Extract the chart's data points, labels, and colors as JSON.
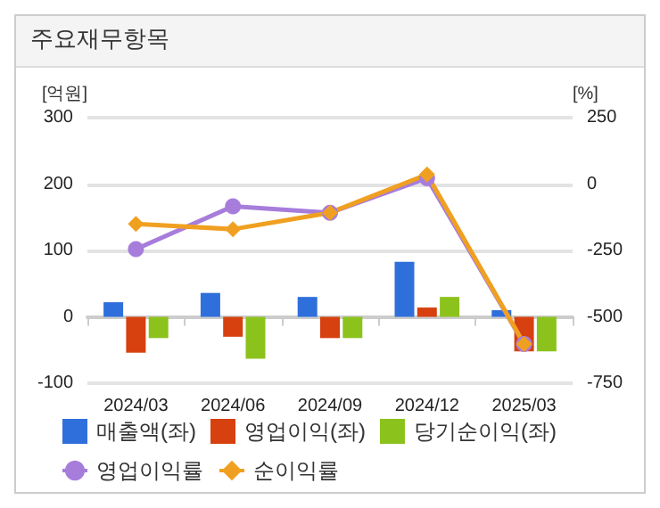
{
  "chart_data": {
    "type": "bar",
    "title": "주요재무항목",
    "ylabel": "[억원]",
    "y2label": "[%]",
    "categories": [
      "2024/03",
      "2024/06",
      "2024/09",
      "2024/12",
      "2025/03"
    ],
    "series": [
      {
        "name": "매출액(좌)",
        "color": "#2f6fdc",
        "values": [
          22,
          36,
          30,
          83,
          10
        ]
      },
      {
        "name": "영업이익(좌)",
        "color": "#d7400f",
        "values": [
          -54,
          -30,
          -32,
          14,
          -52
        ]
      },
      {
        "name": "당기순이익(좌)",
        "color": "#8cc21c",
        "values": [
          -32,
          -63,
          -32,
          30,
          -52
        ]
      },
      {
        "name": "영업이익률",
        "type": "line",
        "axis": "y2",
        "color": "#a77ddc",
        "marker": "circle",
        "values": [
          -245,
          -84,
          -108,
          22,
          -602
        ]
      },
      {
        "name": "순이익률",
        "type": "line",
        "axis": "y2",
        "color": "#f0a020",
        "marker": "diamond",
        "values": [
          -150,
          -170,
          -108,
          36,
          -602
        ]
      }
    ],
    "ylim": [
      -100,
      300
    ],
    "yticks": [
      -100,
      0,
      100,
      200,
      300
    ],
    "y2lim": [
      -750,
      250
    ],
    "y2ticks": [
      -750,
      -500,
      -250,
      0,
      250
    ],
    "grid": "y",
    "legend": "bottom"
  }
}
